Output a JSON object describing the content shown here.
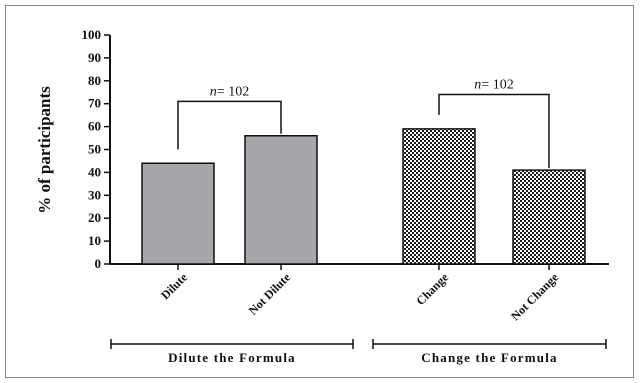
{
  "chart_data": {
    "type": "bar",
    "ylabel": "% of participants",
    "ylim": [
      0,
      100
    ],
    "yticks": [
      0,
      10,
      20,
      30,
      40,
      50,
      60,
      70,
      80,
      90,
      100
    ],
    "categories": [
      "Dilute",
      "Not Dilute",
      "Change",
      "Not Change"
    ],
    "values": [
      44,
      56,
      59,
      41
    ],
    "groups": [
      {
        "label": "Dilute the Formula",
        "categories": [
          "Dilute",
          "Not Dilute"
        ],
        "fill": "#a7a7ab",
        "pattern": "solid"
      },
      {
        "label": "Change the Formula",
        "categories": [
          "Change",
          "Not Change"
        ],
        "fill": "#ffffff",
        "pattern": "checker"
      }
    ],
    "annotations": [
      {
        "prefix": "n",
        "text": "= 102",
        "group": 0
      },
      {
        "prefix": "n",
        "text": "= 102",
        "group": 1
      }
    ],
    "grid": false,
    "legend": "none"
  }
}
